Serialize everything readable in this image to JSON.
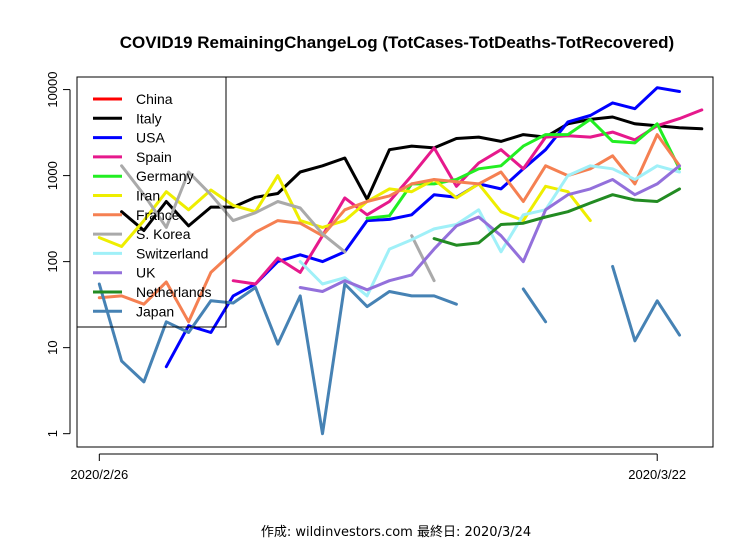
{
  "chart_data": {
    "type": "line",
    "title": "COVID19 RemainingChangeLog (TotCases-TotDeaths-TotRecovered)",
    "footer": "作成: wildinvestors.com 最終日: 2020/3/24",
    "yscale": "log",
    "ylim": [
      0.7,
      14000
    ],
    "xlim": [
      -1,
      27.5
    ],
    "x_ticks": [
      {
        "x": 0,
        "label": "2020/2/26"
      },
      {
        "x": 25,
        "label": "2020/3/22"
      }
    ],
    "y_ticks": [
      {
        "value": 1,
        "label": "1"
      },
      {
        "value": 10,
        "label": "10"
      },
      {
        "value": 100,
        "label": "100"
      },
      {
        "value": 1000,
        "label": "1000"
      },
      {
        "value": 10000,
        "label": "10000"
      }
    ],
    "legend_position": "top-left",
    "series": [
      {
        "name": "China",
        "color": "#ff0000",
        "values": [
          null,
          null,
          null,
          null,
          null,
          null,
          null,
          null,
          null,
          null,
          null,
          null,
          null,
          null,
          null,
          null,
          null,
          null,
          null,
          null,
          null,
          null,
          null,
          null,
          null,
          null,
          null,
          null
        ]
      },
      {
        "name": "Italy",
        "color": "#000000",
        "values": [
          null,
          380,
          230,
          500,
          260,
          430,
          430,
          560,
          620,
          1100,
          1300,
          1600,
          530,
          2000,
          2200,
          2100,
          2700,
          2800,
          2500,
          3000,
          2800,
          4000,
          4500,
          4800,
          4000,
          3800,
          3600,
          3500
        ]
      },
      {
        "name": "USA",
        "color": "#0000ff",
        "values": [
          null,
          null,
          null,
          6,
          18,
          15,
          40,
          55,
          100,
          120,
          100,
          130,
          300,
          310,
          350,
          600,
          560,
          800,
          700,
          1200,
          2000,
          4200,
          5000,
          7000,
          6000,
          10500,
          9500,
          null
        ]
      },
      {
        "name": "Spain",
        "color": "#e6198c",
        "values": [
          null,
          null,
          null,
          null,
          null,
          null,
          60,
          55,
          110,
          75,
          200,
          550,
          350,
          500,
          1000,
          2100,
          750,
          1400,
          2000,
          1200,
          2800,
          2900,
          2800,
          3200,
          2600,
          3800,
          4600,
          5800
        ]
      },
      {
        "name": "Germany",
        "color": "#22ee22",
        "values": [
          null,
          null,
          null,
          null,
          null,
          null,
          null,
          null,
          null,
          null,
          null,
          null,
          320,
          340,
          800,
          800,
          900,
          1200,
          1300,
          2200,
          3000,
          3000,
          4500,
          2500,
          2400,
          4000,
          1200,
          null
        ]
      },
      {
        "name": "Iran",
        "color": "#eeee00",
        "values": [
          190,
          150,
          300,
          650,
          400,
          680,
          450,
          380,
          1000,
          300,
          250,
          300,
          500,
          700,
          650,
          900,
          550,
          800,
          380,
          300,
          750,
          650,
          300,
          null,
          null,
          null,
          null,
          null
        ]
      },
      {
        "name": "France",
        "color": "#f58052",
        "values": [
          38,
          40,
          32,
          58,
          20,
          75,
          130,
          220,
          300,
          280,
          200,
          400,
          500,
          580,
          800,
          900,
          850,
          800,
          1100,
          500,
          1300,
          1000,
          1200,
          1700,
          800,
          3000,
          1300,
          null
        ]
      },
      {
        "name": "S. Korea",
        "color": "#aaaaaa",
        "values": [
          null,
          1300,
          600,
          250,
          1100,
          600,
          300,
          370,
          500,
          420,
          210,
          130,
          null,
          null,
          200,
          60,
          null,
          null,
          null,
          null,
          null,
          null,
          null,
          null,
          null,
          null,
          null,
          null
        ]
      },
      {
        "name": "Switzerland",
        "color": "#a0f0f8",
        "values": [
          null,
          null,
          null,
          null,
          null,
          null,
          null,
          null,
          null,
          100,
          55,
          65,
          40,
          140,
          180,
          240,
          270,
          400,
          130,
          350,
          400,
          1000,
          1300,
          1200,
          900,
          1300,
          1100,
          null
        ]
      },
      {
        "name": "UK",
        "color": "#9370db",
        "values": [
          null,
          null,
          null,
          null,
          null,
          null,
          null,
          null,
          null,
          50,
          45,
          60,
          47,
          60,
          70,
          140,
          260,
          330,
          200,
          100,
          400,
          600,
          700,
          900,
          600,
          800,
          1300,
          null
        ]
      },
      {
        "name": "Netherlands",
        "color": "#228b22",
        "values": [
          null,
          null,
          null,
          null,
          null,
          null,
          null,
          null,
          null,
          null,
          null,
          null,
          null,
          null,
          null,
          185,
          155,
          165,
          270,
          280,
          330,
          380,
          480,
          600,
          520,
          500,
          700,
          null
        ]
      },
      {
        "name": "Japan",
        "color": "#4682b4",
        "values": [
          55,
          7,
          4,
          20,
          15,
          35,
          33,
          50,
          11,
          40,
          1,
          55,
          30,
          45,
          40,
          40,
          32,
          null,
          null,
          48,
          20,
          null,
          null,
          88,
          12,
          35,
          14,
          null
        ]
      }
    ]
  }
}
